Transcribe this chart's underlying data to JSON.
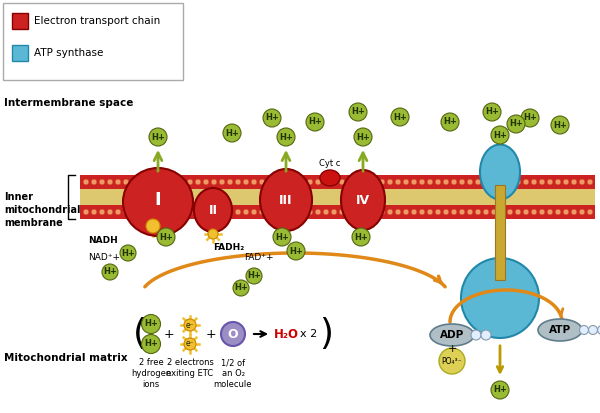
{
  "bg_color": "#ffffff",
  "figsize": [
    6.0,
    4.13
  ],
  "dpi": 100,
  "legend_items": [
    {
      "label": "Electron transport chain",
      "color": "#cc2222"
    },
    {
      "label": "ATP synthase",
      "color": "#5bb8d4"
    }
  ],
  "intermembrane_label": "Intermembrane space",
  "inner_membrane_label": "Inner\nmitochondrial\nmembrane",
  "matrix_label": "Mitochondrial matrix",
  "h_ion_color": "#99bb33",
  "h_ion_edge": "#556611",
  "membrane_color_outer": "#cc2222",
  "membrane_color_inner": "#ddc870",
  "atp_synthase_color": "#5bb8d4",
  "atp_synthase_edge": "#2288aa",
  "orange_color": "#e08818",
  "arr_color": "#88aa22",
  "electron_color": "#f0c030",
  "complex_color": "#cc2222",
  "complex_edge": "#880000",
  "adp_fill": "#b0bec5",
  "adp_edge": "#607d8b",
  "po4_fill": "#ddd055",
  "po4_edge": "#aaaa22",
  "oxygen_fill": "#9b8ec4",
  "oxygen_edge": "#6655aa",
  "stalk_color": "#c8a830",
  "stalk_edge": "#997722"
}
